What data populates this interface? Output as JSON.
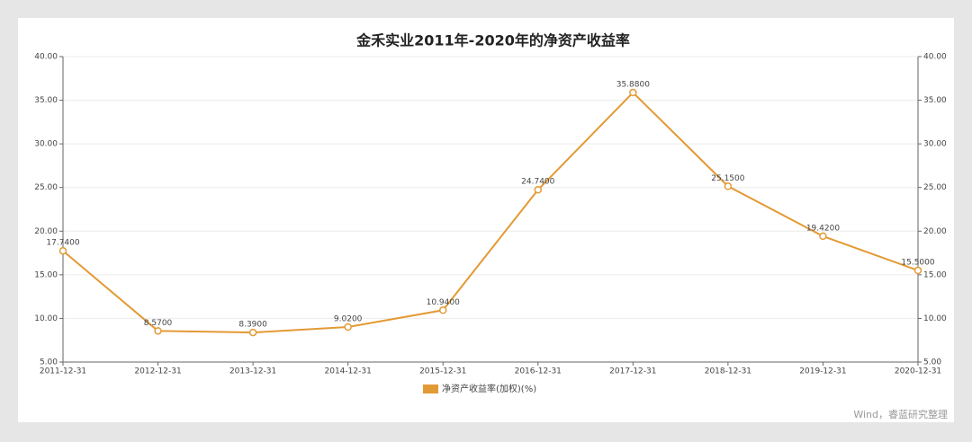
{
  "chart_data": {
    "type": "line",
    "title": "金禾实业2011年-2020年的净资产收益率",
    "categories": [
      "2011-12-31",
      "2012-12-31",
      "2013-12-31",
      "2014-12-31",
      "2015-12-31",
      "2016-12-31",
      "2017-12-31",
      "2018-12-31",
      "2019-12-31",
      "2020-12-31"
    ],
    "series": [
      {
        "name": "净资产收益率(加权)(%)",
        "color": "#e39a35",
        "values": [
          17.74,
          8.57,
          8.39,
          9.02,
          10.94,
          24.74,
          35.88,
          25.15,
          19.42,
          15.5
        ],
        "value_labels": [
          "17.7400",
          "8.5700",
          "8.3900",
          "9.0200",
          "10.9400",
          "24.7400",
          "35.8800",
          "25.1500",
          "19.4200",
          "15.5000"
        ]
      }
    ],
    "ylim": [
      5,
      40
    ],
    "yticks": [
      {
        "value": 5,
        "label": "5.00"
      },
      {
        "value": 10,
        "label": "10.00"
      },
      {
        "value": 15,
        "label": "15.00"
      },
      {
        "value": 20,
        "label": "20.00"
      },
      {
        "value": 25,
        "label": "25.00"
      },
      {
        "value": 30,
        "label": "30.00"
      },
      {
        "value": 35,
        "label": "35.00"
      },
      {
        "value": 40,
        "label": "40.00"
      }
    ],
    "y2lim": [
      5,
      40
    ],
    "y2ticks": [
      {
        "value": 5,
        "label": "5.00"
      },
      {
        "value": 10,
        "label": "10.00"
      },
      {
        "value": 15,
        "label": "15.00"
      },
      {
        "value": 20,
        "label": "20.00"
      },
      {
        "value": 25,
        "label": "25.00"
      },
      {
        "value": 30,
        "label": "30.00"
      },
      {
        "value": 35,
        "label": "35.00"
      },
      {
        "value": 40,
        "label": "40.00"
      }
    ],
    "grid": true,
    "legend": "bottom",
    "source": "Wind，睿蓝研究整理"
  }
}
